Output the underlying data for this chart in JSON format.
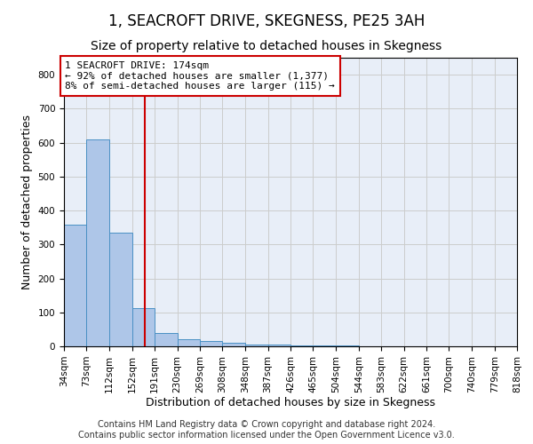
{
  "title": "1, SEACROFT DRIVE, SKEGNESS, PE25 3AH",
  "subtitle": "Size of property relative to detached houses in Skegness",
  "xlabel": "Distribution of detached houses by size in Skegness",
  "ylabel": "Number of detached properties",
  "bin_edges": [
    34,
    73,
    112,
    152,
    191,
    230,
    269,
    308,
    348,
    387,
    426,
    465,
    504,
    544,
    583,
    622,
    661,
    700,
    740,
    779,
    818
  ],
  "bar_heights": [
    358,
    610,
    335,
    113,
    38,
    22,
    16,
    10,
    6,
    4,
    3,
    2,
    2,
    1,
    1,
    1,
    1,
    0,
    0,
    0
  ],
  "bar_color": "#aec6e8",
  "bar_edge_color": "#4a90c4",
  "vline_x": 174,
  "vline_color": "#cc0000",
  "annotation_text": "1 SEACROFT DRIVE: 174sqm\n← 92% of detached houses are smaller (1,377)\n8% of semi-detached houses are larger (115) →",
  "annotation_box_color": "#ffffff",
  "annotation_box_edge_color": "#cc0000",
  "ylim": [
    0,
    850
  ],
  "yticks": [
    0,
    100,
    200,
    300,
    400,
    500,
    600,
    700,
    800
  ],
  "footer_text": "Contains HM Land Registry data © Crown copyright and database right 2024.\nContains public sector information licensed under the Open Government Licence v3.0.",
  "title_fontsize": 12,
  "subtitle_fontsize": 10,
  "xlabel_fontsize": 9,
  "ylabel_fontsize": 9,
  "tick_fontsize": 7.5,
  "annotation_fontsize": 8,
  "footer_fontsize": 7,
  "grid_color": "#cccccc",
  "background_color": "#e8eef8"
}
